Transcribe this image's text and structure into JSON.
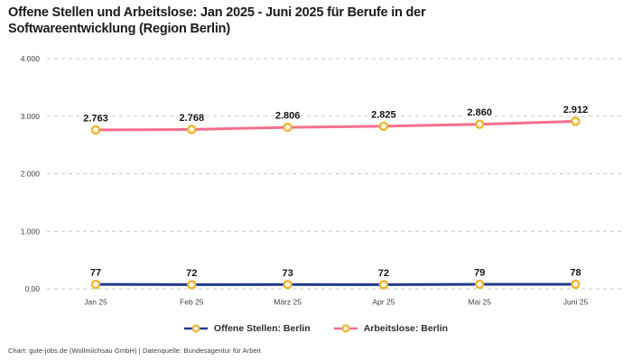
{
  "title": "Offene Stellen und Arbeitslose: Jan 2025 - Juni 2025 für Berufe in der Softwareentwicklung (Region Berlin)",
  "footer": "Chart: gute-jobs.de (Wollmilchsau GmbH) | Datenquelle: Bundesagentur für Arbeit",
  "colors": {
    "open_positions_line": "#213A8F",
    "unemployed_line": "#F4708C",
    "marker_ring": "#F2B32C",
    "marker_fill": "#FFFFFF",
    "gridline": "#C9C9C9",
    "tick_text": "#3F3F3F",
    "data_label_text": "#141414",
    "background": "#FFFFFF"
  },
  "chart_data": {
    "type": "line",
    "title": "Offene Stellen und Arbeitslose: Jan 2025 - Juni 2025 für Berufe in der Softwareentwicklung (Region Berlin)",
    "categories": [
      "Jan 25",
      "Feb 25",
      "März 25",
      "Apr 25",
      "Mai 25",
      "Juni 25"
    ],
    "series": [
      {
        "name": "Offene Stellen: Berlin",
        "values": [
          77,
          72,
          73,
          72,
          79,
          78
        ],
        "labels": [
          "77",
          "72",
          "73",
          "72",
          "79",
          "78"
        ],
        "color": "#213A8F"
      },
      {
        "name": "Arbeitslose: Berlin",
        "values": [
          2763,
          2768,
          2806,
          2825,
          2860,
          2912
        ],
        "labels": [
          "2.763",
          "2.768",
          "2.806",
          "2.825",
          "2.860",
          "2.912"
        ],
        "color": "#F4708C"
      }
    ],
    "y_ticks": [
      {
        "value": 0,
        "label": "0,00"
      },
      {
        "value": 1000,
        "label": "1.000"
      },
      {
        "value": 2000,
        "label": "2.000"
      },
      {
        "value": 3000,
        "label": "3.000"
      },
      {
        "value": 4000,
        "label": "4.000"
      }
    ],
    "ylim": [
      0,
      4000
    ],
    "xlabel": "",
    "ylabel": "",
    "grid": "horizontal-dashed",
    "legend_position": "bottom",
    "marker": "circle-ring-gold"
  }
}
